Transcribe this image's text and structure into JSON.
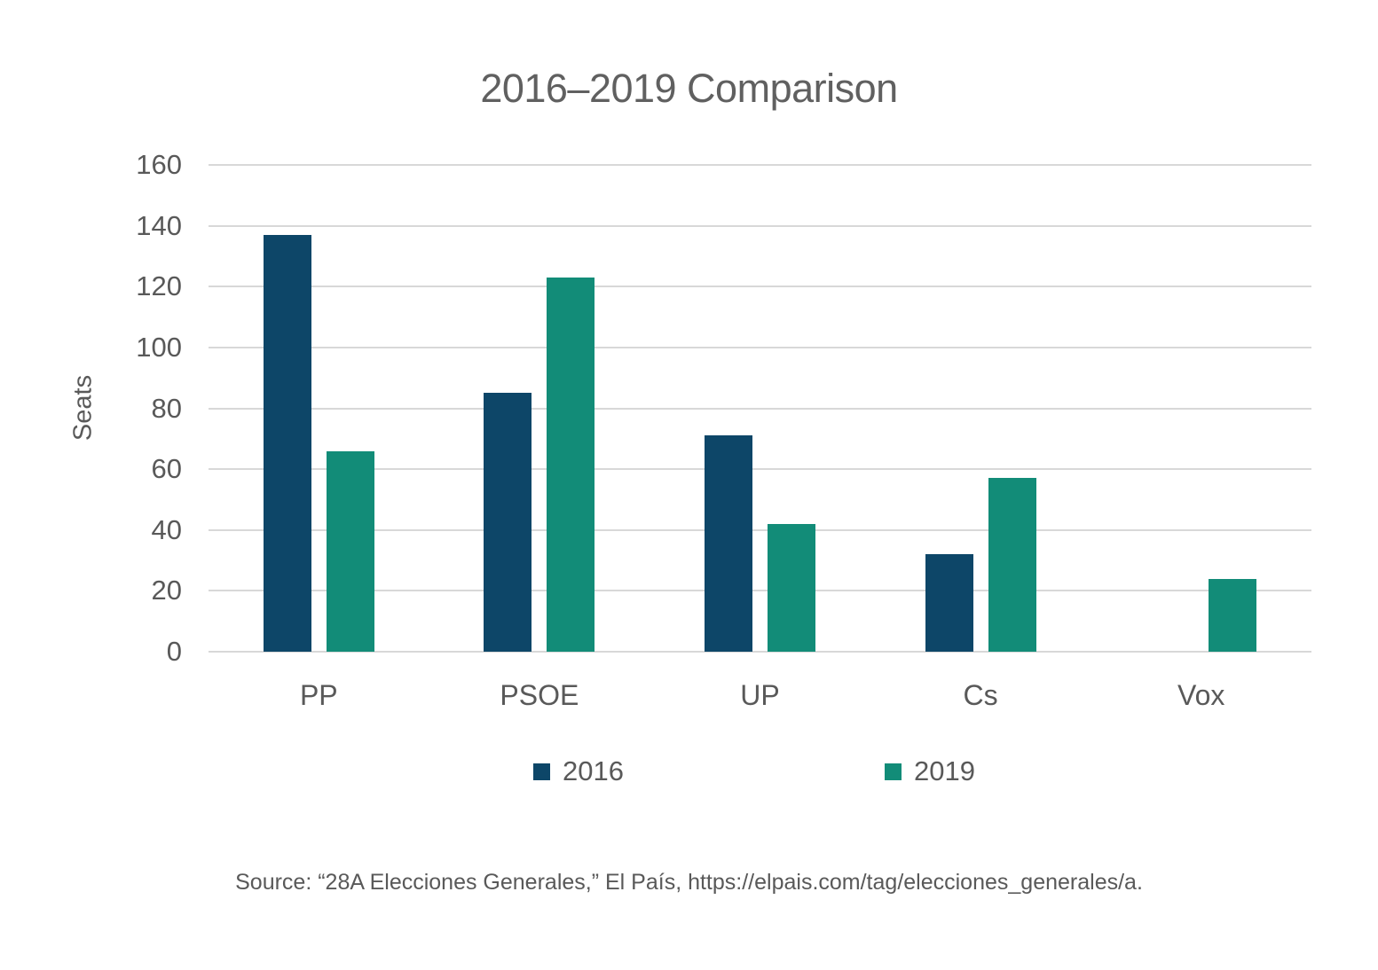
{
  "title": "2016–2019 Comparison",
  "chart_data": {
    "type": "bar",
    "title": "2016–2019 Comparison",
    "categories": [
      "PP",
      "PSOE",
      "UP",
      "Cs",
      "Vox"
    ],
    "series": [
      {
        "name": "2016",
        "color": "#0d4668",
        "values": [
          137,
          85,
          71,
          32,
          0
        ]
      },
      {
        "name": "2019",
        "color": "#128c78",
        "values": [
          66,
          123,
          42,
          57,
          24
        ]
      }
    ],
    "xlabel": "",
    "ylabel": "Seats",
    "ylim": [
      0,
      160
    ],
    "ytick_step": 20,
    "grid": true,
    "legend_position": "bottom"
  },
  "colors": {
    "series_2016": "#0d4668",
    "series_2019": "#128c78",
    "gridline": "#d8d8d8",
    "text": "#595959",
    "background": "#ffffff"
  },
  "source": "Source: “28A Elecciones Generales,” El País, https://elpais.com/tag/elecciones_generales/a."
}
